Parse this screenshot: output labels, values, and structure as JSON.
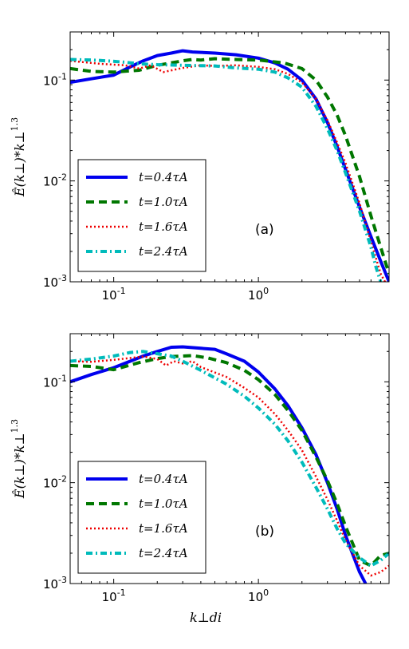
{
  "chart_data": [
    {
      "type": "line",
      "panel_label": "(a)",
      "xscale": "log",
      "yscale": "log",
      "xlim": [
        0.05,
        8
      ],
      "ylim": [
        0.001,
        0.3
      ],
      "ylabel": "Ê(k⊥)*k⊥^1.3",
      "xlabel": "",
      "x_ticks": [
        {
          "v": 0.1,
          "base": "10",
          "exp": "-1"
        },
        {
          "v": 1,
          "base": "10",
          "exp": "0"
        }
      ],
      "y_ticks": [
        {
          "v": 0.001,
          "base": "10",
          "exp": "-3"
        },
        {
          "v": 0.01,
          "base": "10",
          "exp": "-2"
        },
        {
          "v": 0.1,
          "base": "10",
          "exp": "-1"
        }
      ],
      "legend_position": "lower-left",
      "series": [
        {
          "name": "t=0.4τA",
          "color": "#0000ee",
          "style": "solid",
          "points": [
            [
              0.05,
              0.095
            ],
            [
              0.07,
              0.103
            ],
            [
              0.1,
              0.112
            ],
            [
              0.13,
              0.135
            ],
            [
              0.16,
              0.155
            ],
            [
              0.2,
              0.175
            ],
            [
              0.25,
              0.185
            ],
            [
              0.3,
              0.195
            ],
            [
              0.35,
              0.19
            ],
            [
              0.4,
              0.188
            ],
            [
              0.5,
              0.185
            ],
            [
              0.7,
              0.178
            ],
            [
              1.0,
              0.165
            ],
            [
              1.3,
              0.148
            ],
            [
              1.6,
              0.128
            ],
            [
              2.0,
              0.1
            ],
            [
              2.5,
              0.065
            ],
            [
              3.0,
              0.038
            ],
            [
              3.5,
              0.022
            ],
            [
              4.0,
              0.013
            ],
            [
              5.0,
              0.0055
            ],
            [
              6.0,
              0.0028
            ],
            [
              7.0,
              0.0016
            ],
            [
              8.0,
              0.001
            ]
          ]
        },
        {
          "name": "t=1.0τA",
          "color": "#007700",
          "style": "dashed",
          "points": [
            [
              0.05,
              0.13
            ],
            [
              0.07,
              0.122
            ],
            [
              0.1,
              0.12
            ],
            [
              0.15,
              0.125
            ],
            [
              0.2,
              0.14
            ],
            [
              0.3,
              0.155
            ],
            [
              0.35,
              0.16
            ],
            [
              0.4,
              0.158
            ],
            [
              0.5,
              0.163
            ],
            [
              0.7,
              0.16
            ],
            [
              1.0,
              0.158
            ],
            [
              1.5,
              0.148
            ],
            [
              2.0,
              0.13
            ],
            [
              2.5,
              0.1
            ],
            [
              3.0,
              0.068
            ],
            [
              3.5,
              0.045
            ],
            [
              4.0,
              0.028
            ],
            [
              5.0,
              0.011
            ],
            [
              6.0,
              0.0045
            ],
            [
              7.0,
              0.0022
            ],
            [
              8.0,
              0.0012
            ]
          ]
        },
        {
          "name": "t=1.6τA",
          "color": "#ee0000",
          "style": "dotted",
          "points": [
            [
              0.05,
              0.155
            ],
            [
              0.08,
              0.145
            ],
            [
              0.12,
              0.14
            ],
            [
              0.15,
              0.13
            ],
            [
              0.18,
              0.14
            ],
            [
              0.22,
              0.12
            ],
            [
              0.3,
              0.132
            ],
            [
              0.4,
              0.14
            ],
            [
              0.5,
              0.138
            ],
            [
              0.7,
              0.14
            ],
            [
              1.0,
              0.135
            ],
            [
              1.3,
              0.128
            ],
            [
              1.6,
              0.115
            ],
            [
              2.0,
              0.095
            ],
            [
              2.5,
              0.065
            ],
            [
              3.0,
              0.04
            ],
            [
              3.5,
              0.024
            ],
            [
              4.0,
              0.015
            ],
            [
              5.0,
              0.006
            ],
            [
              6.0,
              0.0025
            ],
            [
              7.0,
              0.0012
            ],
            [
              7.5,
              0.001
            ]
          ]
        },
        {
          "name": "t=2.4τA",
          "color": "#00bbbb",
          "style": "dashdot",
          "points": [
            [
              0.05,
              0.16
            ],
            [
              0.07,
              0.158
            ],
            [
              0.09,
              0.155
            ],
            [
              0.12,
              0.15
            ],
            [
              0.15,
              0.145
            ],
            [
              0.2,
              0.142
            ],
            [
              0.3,
              0.14
            ],
            [
              0.5,
              0.138
            ],
            [
              0.7,
              0.132
            ],
            [
              1.0,
              0.128
            ],
            [
              1.3,
              0.12
            ],
            [
              1.6,
              0.105
            ],
            [
              2.0,
              0.085
            ],
            [
              2.5,
              0.055
            ],
            [
              3.0,
              0.033
            ],
            [
              3.5,
              0.02
            ],
            [
              4.0,
              0.012
            ],
            [
              5.0,
              0.005
            ],
            [
              6.0,
              0.0022
            ],
            [
              6.5,
              0.0014
            ],
            [
              7.0,
              0.001
            ]
          ]
        }
      ]
    },
    {
      "type": "line",
      "panel_label": "(b)",
      "xscale": "log",
      "yscale": "log",
      "xlim": [
        0.05,
        8
      ],
      "ylim": [
        0.001,
        0.3
      ],
      "ylabel": "Ê(k⊥)*k⊥^1.3",
      "xlabel": "k⊥di",
      "x_ticks": [
        {
          "v": 0.1,
          "base": "10",
          "exp": "-1"
        },
        {
          "v": 1,
          "base": "10",
          "exp": "0"
        }
      ],
      "y_ticks": [
        {
          "v": 0.001,
          "base": "10",
          "exp": "-3"
        },
        {
          "v": 0.01,
          "base": "10",
          "exp": "-2"
        },
        {
          "v": 0.1,
          "base": "10",
          "exp": "-1"
        }
      ],
      "legend_position": "lower-left",
      "series": [
        {
          "name": "t=0.4τA",
          "color": "#0000ee",
          "style": "solid",
          "points": [
            [
              0.05,
              0.1
            ],
            [
              0.07,
              0.118
            ],
            [
              0.1,
              0.138
            ],
            [
              0.13,
              0.16
            ],
            [
              0.16,
              0.18
            ],
            [
              0.2,
              0.2
            ],
            [
              0.25,
              0.22
            ],
            [
              0.3,
              0.222
            ],
            [
              0.4,
              0.215
            ],
            [
              0.5,
              0.21
            ],
            [
              0.6,
              0.19
            ],
            [
              0.8,
              0.16
            ],
            [
              1.0,
              0.125
            ],
            [
              1.3,
              0.085
            ],
            [
              1.6,
              0.058
            ],
            [
              2.0,
              0.035
            ],
            [
              2.5,
              0.019
            ],
            [
              3.0,
              0.01
            ],
            [
              3.5,
              0.0055
            ],
            [
              4.0,
              0.003
            ],
            [
              5.0,
              0.0013
            ],
            [
              5.5,
              0.001
            ]
          ]
        },
        {
          "name": "t=1.0τA",
          "color": "#007700",
          "style": "dashed",
          "points": [
            [
              0.05,
              0.145
            ],
            [
              0.07,
              0.142
            ],
            [
              0.1,
              0.132
            ],
            [
              0.15,
              0.155
            ],
            [
              0.2,
              0.17
            ],
            [
              0.25,
              0.178
            ],
            [
              0.3,
              0.18
            ],
            [
              0.35,
              0.182
            ],
            [
              0.45,
              0.172
            ],
            [
              0.6,
              0.155
            ],
            [
              0.8,
              0.13
            ],
            [
              1.0,
              0.105
            ],
            [
              1.3,
              0.075
            ],
            [
              1.6,
              0.052
            ],
            [
              2.0,
              0.033
            ],
            [
              2.5,
              0.018
            ],
            [
              3.0,
              0.0105
            ],
            [
              3.5,
              0.0062
            ],
            [
              4.0,
              0.0037
            ],
            [
              5.0,
              0.0017
            ],
            [
              6.0,
              0.0015
            ],
            [
              7.0,
              0.0019
            ],
            [
              8.0,
              0.002
            ]
          ]
        },
        {
          "name": "t=1.6τA",
          "color": "#ee0000",
          "style": "dotted",
          "points": [
            [
              0.05,
              0.16
            ],
            [
              0.07,
              0.158
            ],
            [
              0.1,
              0.165
            ],
            [
              0.13,
              0.172
            ],
            [
              0.16,
              0.178
            ],
            [
              0.2,
              0.168
            ],
            [
              0.23,
              0.145
            ],
            [
              0.26,
              0.16
            ],
            [
              0.3,
              0.152
            ],
            [
              0.35,
              0.16
            ],
            [
              0.4,
              0.14
            ],
            [
              0.6,
              0.112
            ],
            [
              0.8,
              0.087
            ],
            [
              1.0,
              0.07
            ],
            [
              1.3,
              0.048
            ],
            [
              1.6,
              0.033
            ],
            [
              2.0,
              0.021
            ],
            [
              2.5,
              0.0115
            ],
            [
              3.0,
              0.0068
            ],
            [
              3.5,
              0.0042
            ],
            [
              4.0,
              0.0027
            ],
            [
              5.0,
              0.0015
            ],
            [
              6.0,
              0.0012
            ],
            [
              7.0,
              0.0013
            ],
            [
              8.0,
              0.0015
            ]
          ]
        },
        {
          "name": "t=2.4τA",
          "color": "#00bbbb",
          "style": "dashdot",
          "points": [
            [
              0.05,
              0.16
            ],
            [
              0.07,
              0.168
            ],
            [
              0.1,
              0.18
            ],
            [
              0.13,
              0.195
            ],
            [
              0.16,
              0.2
            ],
            [
              0.2,
              0.19
            ],
            [
              0.25,
              0.18
            ],
            [
              0.3,
              0.16
            ],
            [
              0.4,
              0.13
            ],
            [
              0.6,
              0.095
            ],
            [
              0.8,
              0.072
            ],
            [
              1.0,
              0.055
            ],
            [
              1.3,
              0.038
            ],
            [
              1.6,
              0.026
            ],
            [
              2.0,
              0.016
            ],
            [
              2.5,
              0.009
            ],
            [
              3.0,
              0.0055
            ],
            [
              3.5,
              0.0035
            ],
            [
              4.0,
              0.0025
            ],
            [
              5.0,
              0.0018
            ],
            [
              6.0,
              0.0015
            ],
            [
              7.0,
              0.0017
            ],
            [
              8.0,
              0.002
            ]
          ]
        }
      ]
    }
  ]
}
